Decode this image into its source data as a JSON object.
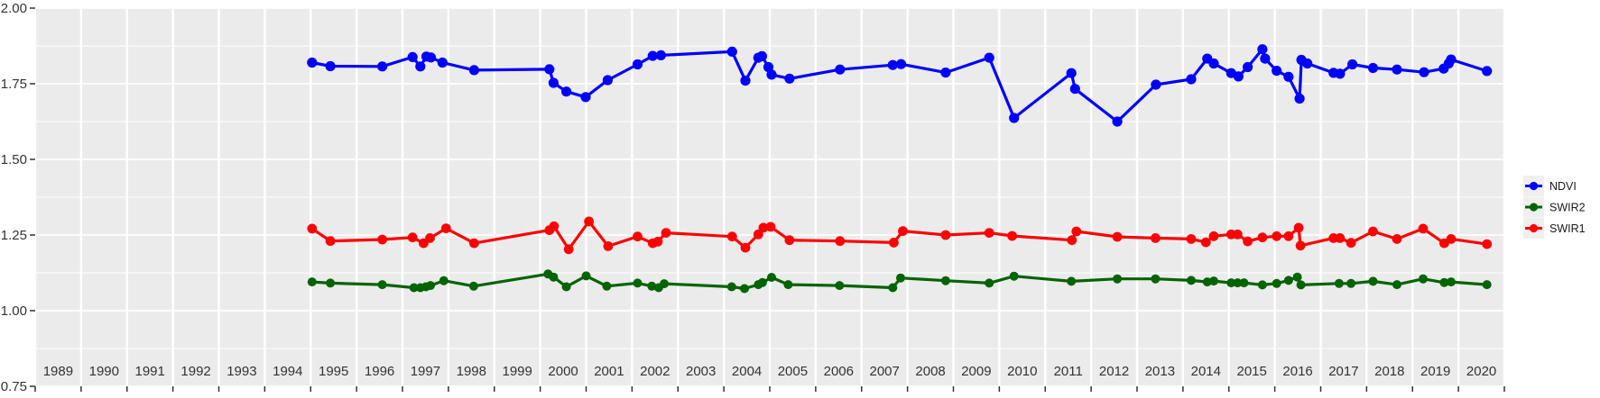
{
  "figure": {
    "background": "#FFFFFF",
    "panel_background": "#EBEBEB",
    "grid_color": "#FFFFFF",
    "axis_text_color": "#333333",
    "tick_color": "#333333"
  },
  "y_axis": {
    "labels": [
      "2.00",
      "1.75",
      "1.50",
      "1.25",
      "1.00",
      "0.75"
    ],
    "values": [
      2.0,
      1.75,
      1.5,
      1.25,
      1.0,
      0.75
    ],
    "minor_values": [
      1.875,
      1.625,
      1.375,
      1.125,
      0.875
    ]
  },
  "x_axis": {
    "labels": [
      "1989",
      "1990",
      "1991",
      "1992",
      "1993",
      "1994",
      "1995",
      "1996",
      "1997",
      "1998",
      "1999",
      "2000",
      "2001",
      "2002",
      "2003",
      "2004",
      "2005",
      "2006",
      "2007",
      "2008",
      "2009",
      "2010",
      "2011",
      "2012",
      "2013",
      "2014",
      "2015",
      "2016",
      "2017",
      "2018",
      "2019",
      "2020"
    ]
  },
  "legend": {
    "position": "right",
    "key_fill": "#EFEFEF",
    "entries": [
      {
        "label": "NDVI",
        "color": "#0000FF"
      },
      {
        "label": "SWIR2",
        "color": "#006400"
      },
      {
        "label": "SWIR1",
        "color": "#FF0000"
      }
    ]
  },
  "chart_data": {
    "type": "line",
    "title": "",
    "xlabel": "",
    "ylabel": "",
    "xlim": [
      1989,
      2021
    ],
    "ylim": [
      0.75,
      2.0
    ],
    "grid": "white major+minor horizontal, white yearly vertical, on gray panel",
    "legend_position": "right",
    "series": [
      {
        "name": "NDVI",
        "color": "#0000FF",
        "point_radius": 5.6,
        "points": [
          [
            1995.03,
            1.82
          ],
          [
            1995.43,
            1.808
          ],
          [
            1996.56,
            1.807
          ],
          [
            1997.22,
            1.838
          ],
          [
            1997.39,
            1.807
          ],
          [
            1997.52,
            1.84
          ],
          [
            1997.62,
            1.837
          ],
          [
            1997.87,
            1.82
          ],
          [
            1998.56,
            1.795
          ],
          [
            2000.2,
            1.798
          ],
          [
            2000.29,
            1.753
          ],
          [
            2000.57,
            1.724
          ],
          [
            2000.99,
            1.706
          ],
          [
            2001.47,
            1.762
          ],
          [
            2002.12,
            1.814
          ],
          [
            2002.45,
            1.842
          ],
          [
            2002.63,
            1.844
          ],
          [
            2004.18,
            1.856
          ],
          [
            2004.47,
            1.76
          ],
          [
            2004.75,
            1.836
          ],
          [
            2004.83,
            1.841
          ],
          [
            2004.97,
            1.805
          ],
          [
            2005.04,
            1.78
          ],
          [
            2005.43,
            1.767
          ],
          [
            2006.53,
            1.797
          ],
          [
            2007.68,
            1.812
          ],
          [
            2007.86,
            1.815
          ],
          [
            2008.83,
            1.787
          ],
          [
            2009.78,
            1.836
          ],
          [
            2010.32,
            1.637
          ],
          [
            2011.57,
            1.785
          ],
          [
            2011.65,
            1.733
          ],
          [
            2012.57,
            1.625
          ],
          [
            2013.41,
            1.747
          ],
          [
            2014.18,
            1.765
          ],
          [
            2014.53,
            1.833
          ],
          [
            2014.67,
            1.817
          ],
          [
            2015.05,
            1.785
          ],
          [
            2015.21,
            1.774
          ],
          [
            2015.41,
            1.805
          ],
          [
            2015.73,
            1.864
          ],
          [
            2015.79,
            1.833
          ],
          [
            2016.04,
            1.793
          ],
          [
            2016.3,
            1.773
          ],
          [
            2016.54,
            1.701
          ],
          [
            2016.58,
            1.829
          ],
          [
            2016.71,
            1.817
          ],
          [
            2017.28,
            1.786
          ],
          [
            2017.42,
            1.783
          ],
          [
            2017.69,
            1.814
          ],
          [
            2018.14,
            1.802
          ],
          [
            2018.66,
            1.797
          ],
          [
            2019.25,
            1.788
          ],
          [
            2019.68,
            1.8
          ],
          [
            2019.79,
            1.817
          ],
          [
            2019.84,
            1.83
          ],
          [
            2020.62,
            1.792
          ]
        ]
      },
      {
        "name": "SWIR2",
        "color": "#006400",
        "point_radius": 5.0,
        "points": [
          [
            1995.03,
            1.095
          ],
          [
            1995.43,
            1.091
          ],
          [
            1996.56,
            1.086
          ],
          [
            1997.25,
            1.076
          ],
          [
            1997.39,
            1.076
          ],
          [
            1997.51,
            1.079
          ],
          [
            1997.61,
            1.083
          ],
          [
            1997.9,
            1.099
          ],
          [
            1998.55,
            1.081
          ],
          [
            2000.17,
            1.121
          ],
          [
            2000.29,
            1.111
          ],
          [
            2000.57,
            1.079
          ],
          [
            2001.0,
            1.115
          ],
          [
            2001.45,
            1.081
          ],
          [
            2002.12,
            1.091
          ],
          [
            2002.43,
            1.081
          ],
          [
            2002.58,
            1.076
          ],
          [
            2002.7,
            1.089
          ],
          [
            2004.17,
            1.079
          ],
          [
            2004.45,
            1.073
          ],
          [
            2004.75,
            1.086
          ],
          [
            2004.84,
            1.093
          ],
          [
            2005.04,
            1.11
          ],
          [
            2005.4,
            1.086
          ],
          [
            2006.52,
            1.083
          ],
          [
            2007.68,
            1.076
          ],
          [
            2007.85,
            1.108
          ],
          [
            2008.83,
            1.099
          ],
          [
            2009.78,
            1.091
          ],
          [
            2010.32,
            1.114
          ],
          [
            2011.57,
            1.097
          ],
          [
            2012.57,
            1.105
          ],
          [
            2013.4,
            1.105
          ],
          [
            2014.18,
            1.1
          ],
          [
            2014.53,
            1.095
          ],
          [
            2014.67,
            1.098
          ],
          [
            2015.05,
            1.092
          ],
          [
            2015.19,
            1.092
          ],
          [
            2015.33,
            1.092
          ],
          [
            2015.73,
            1.085
          ],
          [
            2016.04,
            1.09
          ],
          [
            2016.3,
            1.1
          ],
          [
            2016.49,
            1.111
          ],
          [
            2016.57,
            1.085
          ],
          [
            2017.4,
            1.09
          ],
          [
            2017.66,
            1.09
          ],
          [
            2018.14,
            1.097
          ],
          [
            2018.66,
            1.086
          ],
          [
            2019.23,
            1.105
          ],
          [
            2019.69,
            1.093
          ],
          [
            2019.84,
            1.095
          ],
          [
            2020.62,
            1.086
          ]
        ]
      },
      {
        "name": "SWIR1",
        "color": "#FF0000",
        "point_radius": 5.4,
        "points": [
          [
            1995.03,
            1.271
          ],
          [
            1995.43,
            1.23
          ],
          [
            1996.56,
            1.235
          ],
          [
            1997.22,
            1.242
          ],
          [
            1997.46,
            1.223
          ],
          [
            1997.6,
            1.24
          ],
          [
            1997.95,
            1.272
          ],
          [
            1998.56,
            1.223
          ],
          [
            2000.2,
            1.266
          ],
          [
            2000.3,
            1.279
          ],
          [
            2000.62,
            1.203
          ],
          [
            2001.06,
            1.295
          ],
          [
            2001.48,
            1.213
          ],
          [
            2002.12,
            1.245
          ],
          [
            2002.45,
            1.223
          ],
          [
            2002.56,
            1.228
          ],
          [
            2002.74,
            1.257
          ],
          [
            2004.18,
            1.245
          ],
          [
            2004.47,
            1.208
          ],
          [
            2004.75,
            1.252
          ],
          [
            2004.86,
            1.274
          ],
          [
            2005.02,
            1.277
          ],
          [
            2005.43,
            1.233
          ],
          [
            2006.53,
            1.23
          ],
          [
            2007.7,
            1.225
          ],
          [
            2007.9,
            1.263
          ],
          [
            2008.83,
            1.25
          ],
          [
            2009.78,
            1.257
          ],
          [
            2010.28,
            1.247
          ],
          [
            2011.58,
            1.233
          ],
          [
            2011.68,
            1.262
          ],
          [
            2012.57,
            1.244
          ],
          [
            2013.4,
            1.24
          ],
          [
            2014.18,
            1.237
          ],
          [
            2014.5,
            1.226
          ],
          [
            2014.67,
            1.246
          ],
          [
            2015.05,
            1.252
          ],
          [
            2015.19,
            1.252
          ],
          [
            2015.41,
            1.229
          ],
          [
            2015.73,
            1.242
          ],
          [
            2016.04,
            1.246
          ],
          [
            2016.3,
            1.246
          ],
          [
            2016.52,
            1.274
          ],
          [
            2016.56,
            1.215
          ],
          [
            2017.28,
            1.24
          ],
          [
            2017.42,
            1.24
          ],
          [
            2017.66,
            1.224
          ],
          [
            2018.14,
            1.262
          ],
          [
            2018.66,
            1.237
          ],
          [
            2019.23,
            1.271
          ],
          [
            2019.69,
            1.223
          ],
          [
            2019.84,
            1.237
          ],
          [
            2020.62,
            1.22
          ]
        ]
      }
    ]
  }
}
